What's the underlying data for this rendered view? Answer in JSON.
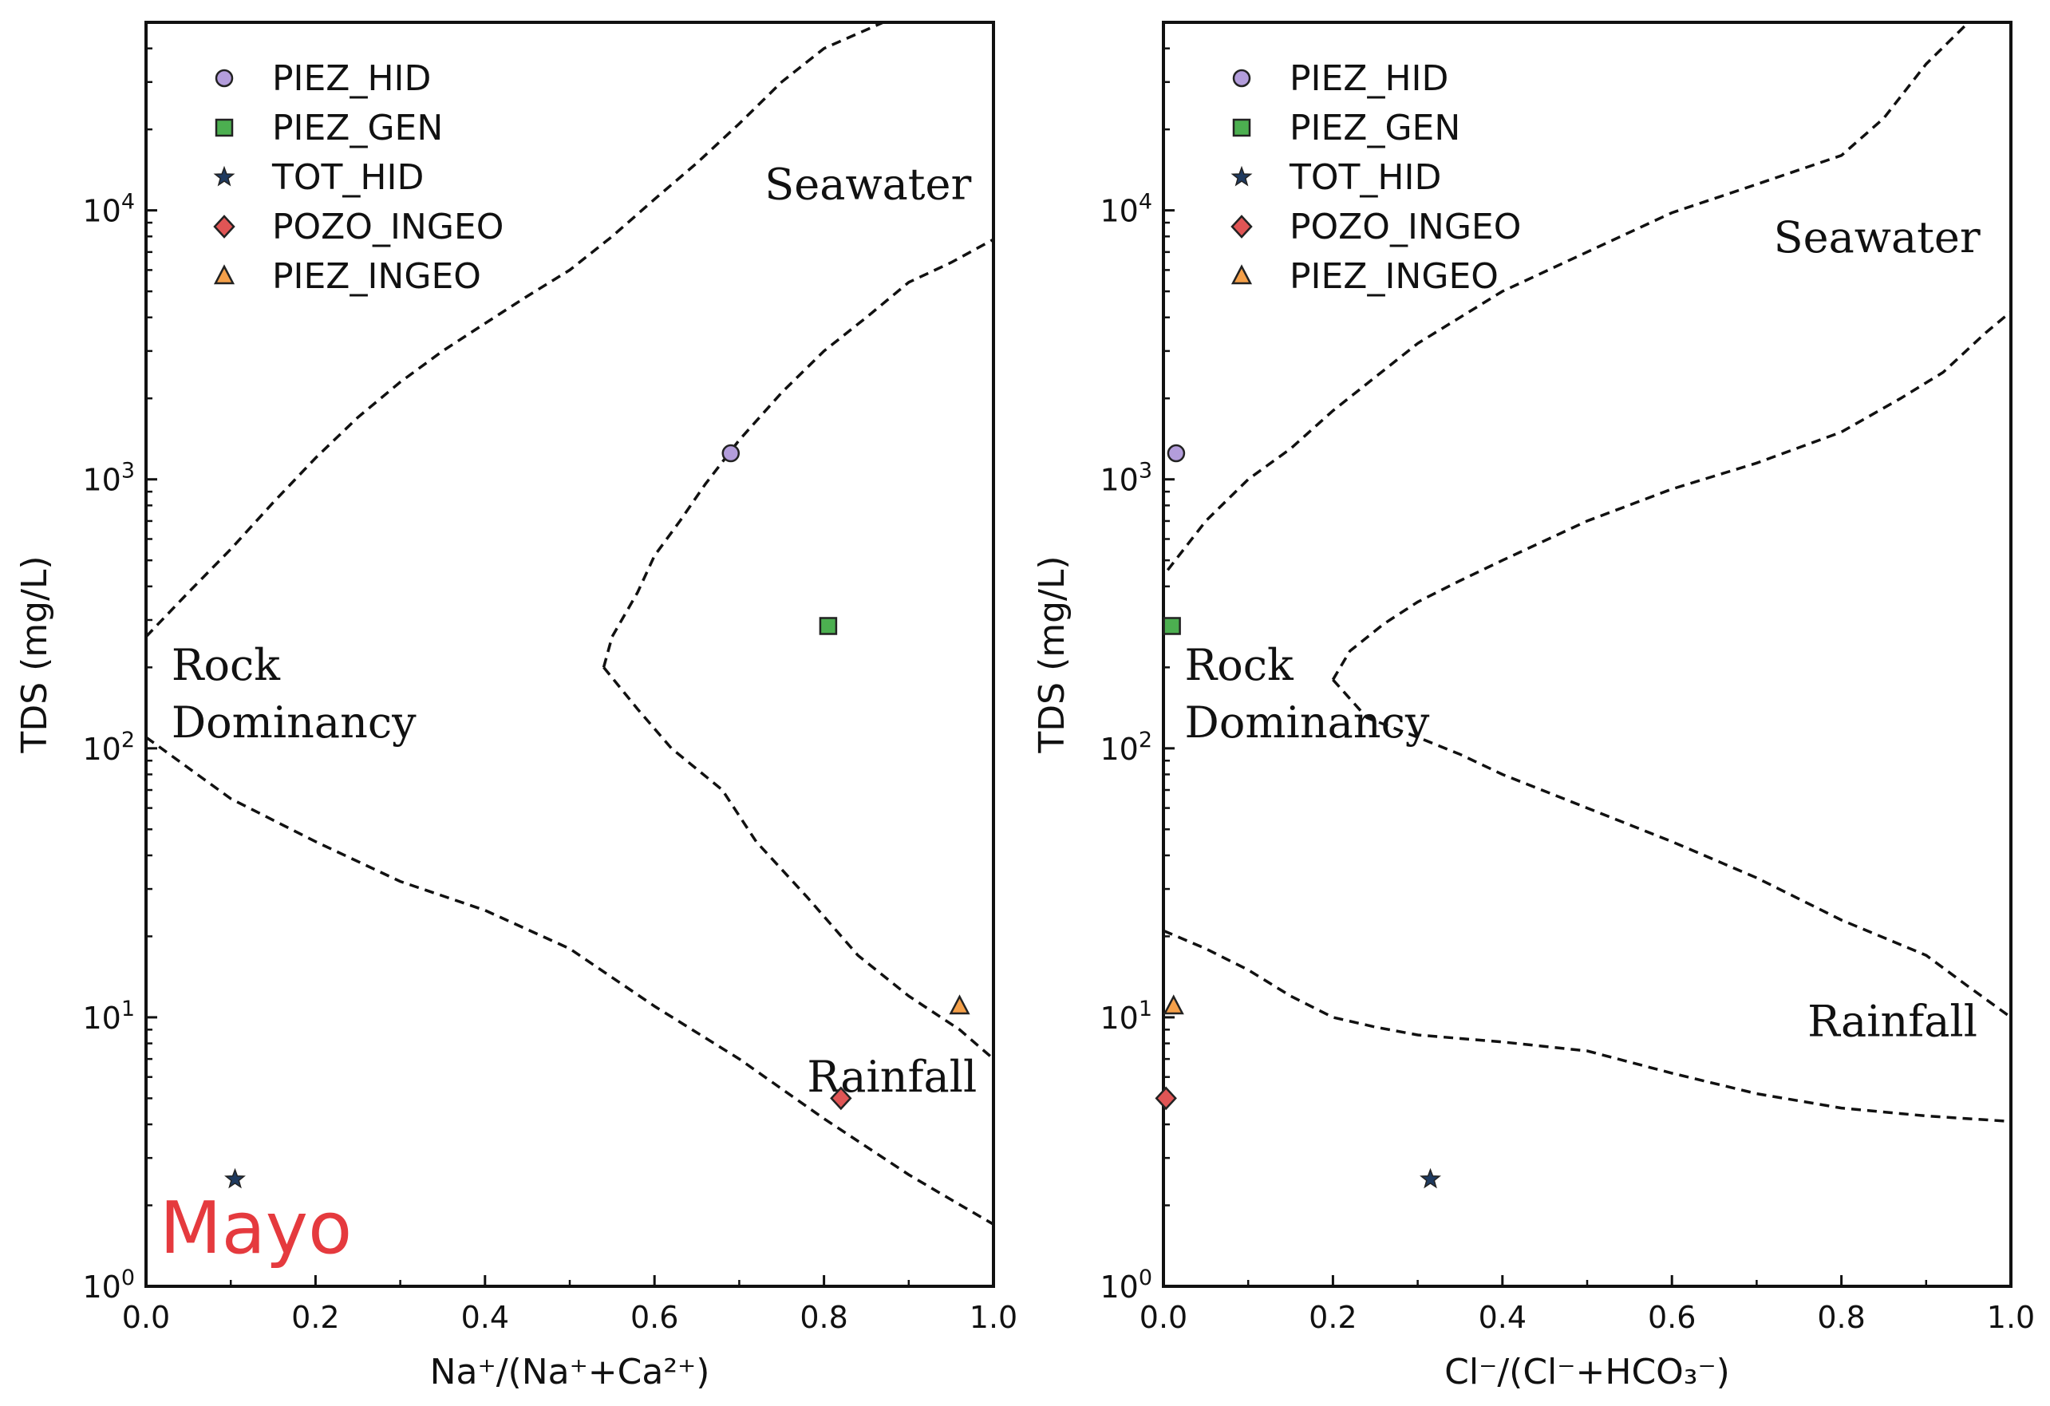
{
  "watermark": "Mayo",
  "colors": {
    "PIEZ_HID": "#b39ddb",
    "PIEZ_GEN": "#4caf50",
    "TOT_HID": "#1f3a5f",
    "POZO_INGEO": "#e05555",
    "PIEZ_INGEO": "#f4a04a",
    "watermark": "#e53a3e"
  },
  "chart_data": [
    {
      "type": "scatter",
      "xlabel": "Na⁺/(Na⁺+Ca²⁺)",
      "ylabel": "TDS (mg/L)",
      "xlim": [
        0,
        1
      ],
      "ylim": [
        1,
        50000
      ],
      "yscale": "log",
      "x_ticks": [
        "0.0",
        "0.2",
        "0.4",
        "0.6",
        "0.8",
        "1.0"
      ],
      "y_ticks": [
        {
          "base": "10",
          "exp": "0"
        },
        {
          "base": "10",
          "exp": "1"
        },
        {
          "base": "10",
          "exp": "2"
        },
        {
          "base": "10",
          "exp": "3"
        },
        {
          "base": "10",
          "exp": "4"
        }
      ],
      "legend_position": "top-left",
      "series": [
        {
          "name": "PIEZ_HID",
          "marker": "circle",
          "x": [
            0.69
          ],
          "y": [
            1250
          ]
        },
        {
          "name": "PIEZ_GEN",
          "marker": "square",
          "x": [
            0.805
          ],
          "y": [
            285
          ]
        },
        {
          "name": "TOT_HID",
          "marker": "star",
          "x": [
            0.105
          ],
          "y": [
            2.5
          ]
        },
        {
          "name": "POZO_INGEO",
          "marker": "diamond",
          "x": [
            0.82
          ],
          "y": [
            5
          ]
        },
        {
          "name": "PIEZ_INGEO",
          "marker": "triangle",
          "x": [
            0.96
          ],
          "y": [
            11
          ]
        }
      ],
      "boundary_lines": [
        {
          "x": [
            0.0,
            0.05,
            0.1,
            0.15,
            0.2,
            0.25,
            0.3,
            0.35,
            0.4,
            0.45,
            0.5,
            0.55,
            0.6,
            0.65,
            0.7,
            0.75,
            0.8,
            0.9
          ],
          "y": [
            260,
            380,
            550,
            820,
            1200,
            1700,
            2300,
            3000,
            3800,
            4800,
            6000,
            8000,
            11000,
            15000,
            21000,
            30000,
            40000,
            55000
          ]
        },
        {
          "x": [
            0.54,
            0.55,
            0.58,
            0.6,
            0.63,
            0.66,
            0.7,
            0.75,
            0.8,
            0.85,
            0.9,
            0.95,
            1.0
          ],
          "y": [
            200,
            260,
            380,
            520,
            700,
            960,
            1400,
            2100,
            3000,
            4000,
            5400,
            6400,
            7800
          ]
        },
        {
          "x": [
            0.54,
            0.58,
            0.62,
            0.68,
            0.72,
            0.78,
            0.84,
            0.9,
            0.96,
            1.0
          ],
          "y": [
            200,
            140,
            100,
            70,
            45,
            28,
            17,
            12,
            9,
            7
          ]
        },
        {
          "x": [
            0.0,
            0.1,
            0.2,
            0.3,
            0.4,
            0.5,
            0.6,
            0.7,
            0.8,
            0.9,
            0.95,
            1.0
          ],
          "y": [
            110,
            65,
            45,
            32,
            25,
            18,
            11,
            7,
            4.2,
            2.6,
            2.1,
            1.7
          ]
        }
      ],
      "annotations": [
        {
          "text": "Seawater",
          "x": 0.73,
          "y": 11000
        },
        {
          "text": "Rock",
          "x": 0.03,
          "y": 180
        },
        {
          "text": "Dominancy",
          "x": 0.03,
          "y": 110
        },
        {
          "text": "Rainfall",
          "x": 0.78,
          "y": 5.3
        }
      ]
    },
    {
      "type": "scatter",
      "xlabel": "Cl⁻/(Cl⁻+HCO₃⁻)",
      "ylabel": "TDS (mg/L)",
      "xlim": [
        0,
        1
      ],
      "ylim": [
        1,
        50000
      ],
      "yscale": "log",
      "x_ticks": [
        "0.0",
        "0.2",
        "0.4",
        "0.6",
        "0.8",
        "1.0"
      ],
      "y_ticks": [
        {
          "base": "10",
          "exp": "0"
        },
        {
          "base": "10",
          "exp": "1"
        },
        {
          "base": "10",
          "exp": "2"
        },
        {
          "base": "10",
          "exp": "3"
        },
        {
          "base": "10",
          "exp": "4"
        }
      ],
      "legend_position": "top-left",
      "series": [
        {
          "name": "PIEZ_HID",
          "marker": "circle",
          "x": [
            0.015
          ],
          "y": [
            1250
          ]
        },
        {
          "name": "PIEZ_GEN",
          "marker": "square",
          "x": [
            0.01
          ],
          "y": [
            285
          ]
        },
        {
          "name": "TOT_HID",
          "marker": "star",
          "x": [
            0.315
          ],
          "y": [
            2.5
          ]
        },
        {
          "name": "POZO_INGEO",
          "marker": "diamond",
          "x": [
            0.003
          ],
          "y": [
            5
          ]
        },
        {
          "name": "PIEZ_INGEO",
          "marker": "triangle",
          "x": [
            0.012
          ],
          "y": [
            11
          ]
        }
      ],
      "boundary_lines": [
        {
          "x": [
            0.005,
            0.05,
            0.1,
            0.15,
            0.2,
            0.3,
            0.4,
            0.5,
            0.6,
            0.7,
            0.8,
            0.85,
            0.9,
            0.95
          ],
          "y": [
            460,
            700,
            1000,
            1300,
            1800,
            3200,
            5000,
            7000,
            9800,
            12500,
            16000,
            22000,
            35000,
            50000
          ]
        },
        {
          "x": [
            0.2,
            0.22,
            0.26,
            0.3,
            0.35,
            0.4,
            0.5,
            0.6,
            0.7,
            0.8,
            0.87,
            0.92,
            0.97,
            1.0
          ],
          "y": [
            180,
            230,
            290,
            350,
            420,
            500,
            700,
            920,
            1150,
            1500,
            2000,
            2500,
            3500,
            4200
          ]
        },
        {
          "x": [
            0.2,
            0.24,
            0.3,
            0.35,
            0.4,
            0.5,
            0.6,
            0.7,
            0.8,
            0.9,
            0.95,
            1.0
          ],
          "y": [
            180,
            130,
            110,
            95,
            80,
            60,
            45,
            33,
            23,
            17,
            13,
            10
          ]
        },
        {
          "x": [
            0.0,
            0.05,
            0.1,
            0.15,
            0.2,
            0.25,
            0.3,
            0.4,
            0.5,
            0.6,
            0.7,
            0.8,
            0.9,
            1.0
          ],
          "y": [
            21,
            18,
            15,
            12,
            10,
            9.2,
            8.6,
            8.1,
            7.5,
            6.2,
            5.2,
            4.6,
            4.3,
            4.1
          ]
        }
      ],
      "annotations": [
        {
          "text": "Seawater",
          "x": 0.72,
          "y": 7000
        },
        {
          "text": "Rock",
          "x": 0.025,
          "y": 180
        },
        {
          "text": "Dominancy",
          "x": 0.025,
          "y": 110
        },
        {
          "text": "Rainfall",
          "x": 0.76,
          "y": 8.5
        }
      ]
    }
  ]
}
